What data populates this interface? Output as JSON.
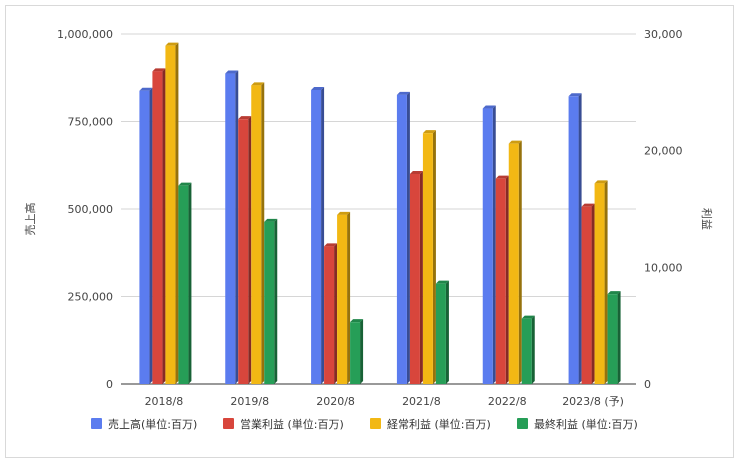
{
  "chart_data": {
    "type": "bar",
    "categories": [
      "2018/8",
      "2019/8",
      "2020/8",
      "2021/8",
      "2022/8",
      "2023/8 (予)"
    ],
    "y_left": {
      "label": "売上高",
      "ylim": [
        0,
        1000000
      ],
      "ticks": [
        0,
        250000,
        500000,
        750000,
        1000000
      ],
      "tick_labels": [
        "0",
        "250,000",
        "500,000",
        "750,000",
        "1,000,000"
      ]
    },
    "y_right": {
      "label": "利益",
      "ylim": [
        0,
        30000
      ],
      "ticks": [
        0,
        10000,
        20000,
        30000
      ],
      "tick_labels": [
        "0",
        "10,000",
        "20,000",
        "30,000"
      ]
    },
    "series": [
      {
        "name": "売上高(単位:百万)",
        "axis": "left",
        "color": "#5b7cef",
        "values": [
          838000,
          887000,
          840000,
          826000,
          787000,
          822000
        ]
      },
      {
        "name": "営業利益 (単位:百万)",
        "axis": "right",
        "color": "#d8463c",
        "values": [
          26800,
          22700,
          11800,
          18000,
          17600,
          15200
        ]
      },
      {
        "name": "経常利益 (単位:百万)",
        "axis": "right",
        "color": "#f2b814",
        "values": [
          29000,
          25600,
          14500,
          21500,
          20600,
          17200
        ]
      },
      {
        "name": "最終利益 (単位:百万)",
        "axis": "right",
        "color": "#269e57",
        "values": [
          17000,
          13900,
          5300,
          8600,
          5600,
          7700
        ]
      }
    ],
    "grid": true,
    "legend_position": "bottom"
  }
}
